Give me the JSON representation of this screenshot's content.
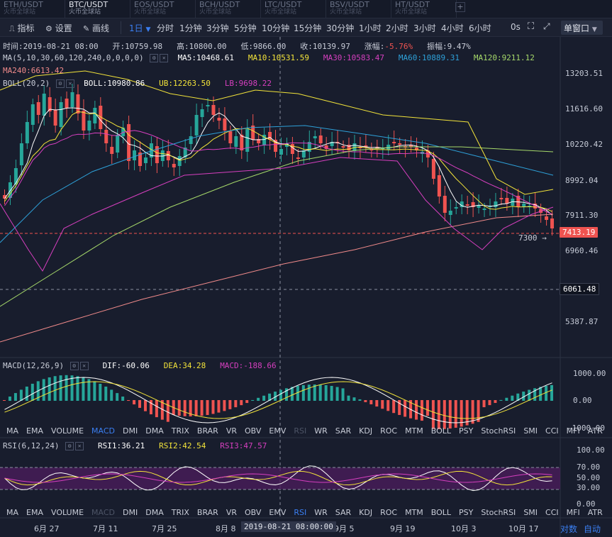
{
  "tabs": [
    {
      "pair": "ETH/USDT",
      "exchange": "火币全球站",
      "active": false
    },
    {
      "pair": "BTC/USDT",
      "exchange": "火币全球站",
      "active": true
    },
    {
      "pair": "EOS/USDT",
      "exchange": "火币全球站",
      "active": false
    },
    {
      "pair": "BCH/USDT",
      "exchange": "火币全球站",
      "active": false
    },
    {
      "pair": "LTC/USDT",
      "exchange": "火币全球站",
      "active": false
    },
    {
      "pair": "BSV/USDT",
      "exchange": "火币全球站",
      "active": false
    },
    {
      "pair": "HT/USDT",
      "exchange": "火币全球站",
      "active": false
    }
  ],
  "tab_add_label": "+",
  "toolbar": {
    "indicator_label": "指标",
    "settings_label": "设置",
    "draw_label": "画线",
    "current_interval": "1日",
    "intervals": [
      "分时",
      "1分钟",
      "3分钟",
      "5分钟",
      "10分钟",
      "15分钟",
      "30分钟",
      "1小时",
      "2小时",
      "3小时",
      "4小时",
      "6小时"
    ],
    "countdown": "0s",
    "window_mode": "单窗口"
  },
  "ohlc": {
    "time": "时间:2019-08-21 08:00",
    "open": "开:10759.98",
    "high": "高:10800.00",
    "low": "低:9866.00",
    "close": "收:10139.97",
    "change_label": "涨幅:",
    "change": "-5.76%",
    "amplitude": "振幅:9.47%"
  },
  "ma": {
    "label": "MA(5,10,30,60,120,240,0,0,0,0)",
    "ma5": "MA5:10468.61",
    "ma10": "MA10:10531.59",
    "ma30": "MA30:10583.47",
    "ma60": "MA60:10889.31",
    "ma120": "MA120:9211.12",
    "ma240": "MA240:6613.42"
  },
  "boll": {
    "label": "BOLL(20,2)",
    "boll": "BOLL:10980.86",
    "ub": "UB:12263.50",
    "lb": "LB:9698.22"
  },
  "price_axis": {
    "ticks": [
      "13203.51",
      "11616.60",
      "10220.42",
      "8992.04",
      "7911.30",
      "6960.46",
      "5387.87"
    ],
    "current_price": "7413.19",
    "crosshair_price": "6061.48",
    "marker_low": "7300 →"
  },
  "macd": {
    "label": "MACD(12,26,9)",
    "dif": "DIF:-60.06",
    "dea": "DEA:34.28",
    "macd": "MACD:-188.66",
    "ticks": [
      "1000.00",
      "0.00",
      "-1000.00"
    ]
  },
  "rsi": {
    "label": "RSI(6,12,24)",
    "rsi1": "RSI1:36.21",
    "rsi2": "RSI2:42.54",
    "rsi3": "RSI3:47.57",
    "ticks": [
      "100.00",
      "70.00",
      "50.00",
      "30.00",
      "0.00"
    ]
  },
  "indicator_tabs": [
    "MA",
    "EMA",
    "VOLUME",
    "MACD",
    "DMI",
    "DMA",
    "TRIX",
    "BRAR",
    "VR",
    "OBV",
    "EMV",
    "RSI",
    "WR",
    "SAR",
    "KDJ",
    "ROC",
    "MTM",
    "BOLL",
    "PSY",
    "StochRSI",
    "SMI",
    "CCI",
    "MFI",
    "ATR"
  ],
  "indicator_tabs_active_1": "MACD",
  "indicator_tabs_active_2": "RSI",
  "x_axis": {
    "ticks": [
      "6月 27",
      "7月 11",
      "7月 25",
      "8月 8",
      "9月 5",
      "9月 19",
      "10月 3",
      "10月 17"
    ],
    "crosshair_time": "2019-08-21 08:00:00",
    "log_scale_label": "对数",
    "auto_label": "自动"
  },
  "colors": {
    "up": "#26a69a",
    "down": "#ef5350",
    "ma5": "#ffffff",
    "ma10": "#f2e33a",
    "ma30": "#d63fbf",
    "ma60": "#2ea1d9",
    "ma120": "#a6d96a",
    "ma240": "#f08a8a",
    "accent": "#3b7ff2"
  }
}
